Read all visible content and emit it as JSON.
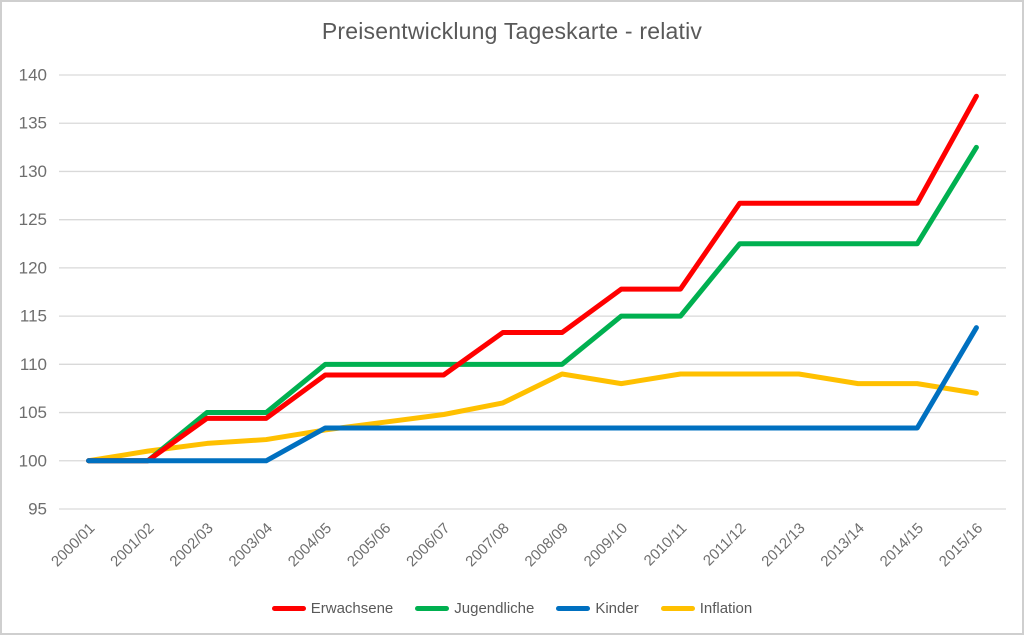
{
  "chart_data": {
    "type": "line",
    "title": "Preisentwicklung Tageskarte - relativ",
    "categories": [
      "2000/01",
      "2001/02",
      "2002/03",
      "2003/04",
      "2004/05",
      "2005/06",
      "2006/07",
      "2007/08",
      "2008/09",
      "2009/10",
      "2010/11",
      "2011/12",
      "2012/13",
      "2013/14",
      "2014/15",
      "2015/16"
    ],
    "series": [
      {
        "name": "Erwachsene",
        "color": "#FF0000",
        "values": [
          100,
          100,
          104.4,
          104.4,
          108.9,
          108.9,
          108.9,
          113.3,
          113.3,
          117.8,
          117.8,
          126.7,
          126.7,
          126.7,
          126.7,
          137.8
        ]
      },
      {
        "name": "Jugendliche",
        "color": "#00B050",
        "values": [
          100,
          100,
          105,
          105,
          110,
          110,
          110,
          110,
          110,
          115,
          115,
          122.5,
          122.5,
          122.5,
          122.5,
          132.5
        ]
      },
      {
        "name": "Kinder",
        "color": "#0070C0",
        "values": [
          100,
          100,
          100,
          100,
          103.4,
          103.4,
          103.4,
          103.4,
          103.4,
          103.4,
          103.4,
          103.4,
          103.4,
          103.4,
          103.4,
          113.8
        ]
      },
      {
        "name": "Inflation",
        "color": "#FFC000",
        "values": [
          100,
          101,
          101.8,
          102.2,
          103.2,
          104,
          104.8,
          106,
          109,
          108,
          109,
          109,
          109,
          108,
          108,
          107
        ]
      }
    ],
    "draw_order": [
      "Inflation",
      "Jugendliche",
      "Erwachsene",
      "Kinder"
    ],
    "xlabel": "",
    "ylabel": "",
    "ylim": [
      95,
      140
    ],
    "ytick_step": 5,
    "grid": "on",
    "legend_position": "bottom"
  },
  "colors": {
    "grid": "#D9D9D9",
    "axis_text": "#6E6E6E",
    "title_text": "#595959",
    "frame_border": "#CFCFCF",
    "background": "#FFFFFF"
  }
}
